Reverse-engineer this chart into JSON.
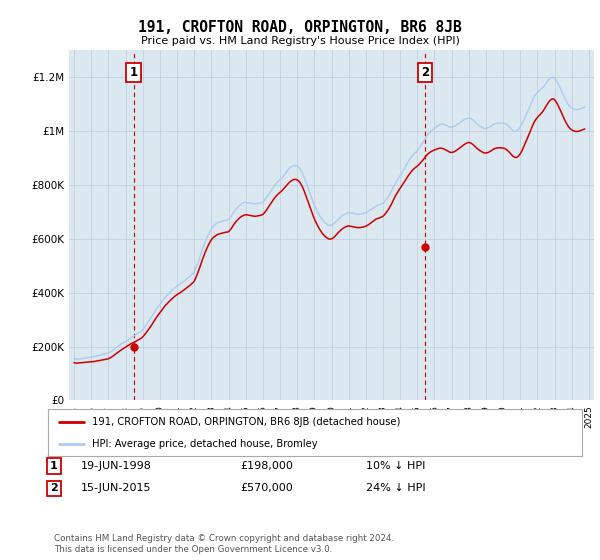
{
  "title": "191, CROFTON ROAD, ORPINGTON, BR6 8JB",
  "subtitle": "Price paid vs. HM Land Registry's House Price Index (HPI)",
  "ylabel_ticks": [
    "£0",
    "£200K",
    "£400K",
    "£600K",
    "£800K",
    "£1M",
    "£1.2M"
  ],
  "ytick_values": [
    0,
    200000,
    400000,
    600000,
    800000,
    1000000,
    1200000
  ],
  "ylim": [
    0,
    1300000
  ],
  "xlim_start": 1994.7,
  "xlim_end": 2025.3,
  "hpi_color": "#aaccee",
  "price_color": "#cc0000",
  "bg_color": "#dce8f0",
  "grid_color": "#bbccdd",
  "sale1_x": 1998.46,
  "sale1_y": 198000,
  "sale1_label": "1",
  "sale2_x": 2015.46,
  "sale2_y": 570000,
  "sale2_label": "2",
  "legend_price_label": "191, CROFTON ROAD, ORPINGTON, BR6 8JB (detached house)",
  "legend_hpi_label": "HPI: Average price, detached house, Bromley",
  "annotation1_date": "19-JUN-1998",
  "annotation1_price": "£198,000",
  "annotation1_hpi": "10% ↓ HPI",
  "annotation2_date": "15-JUN-2015",
  "annotation2_price": "£570,000",
  "annotation2_hpi": "24% ↓ HPI",
  "footer": "Contains HM Land Registry data © Crown copyright and database right 2024.\nThis data is licensed under the Open Government Licence v3.0.",
  "hpi_data_years": [
    1995,
    1995.083,
    1995.167,
    1995.25,
    1995.333,
    1995.417,
    1995.5,
    1995.583,
    1995.667,
    1995.75,
    1995.833,
    1995.917,
    1996,
    1996.083,
    1996.167,
    1996.25,
    1996.333,
    1996.417,
    1996.5,
    1996.583,
    1996.667,
    1996.75,
    1996.833,
    1996.917,
    1997,
    1997.083,
    1997.167,
    1997.25,
    1997.333,
    1997.417,
    1997.5,
    1997.583,
    1997.667,
    1997.75,
    1997.833,
    1997.917,
    1998,
    1998.083,
    1998.167,
    1998.25,
    1998.333,
    1998.417,
    1998.5,
    1998.583,
    1998.667,
    1998.75,
    1998.833,
    1998.917,
    1999,
    1999.083,
    1999.167,
    1999.25,
    1999.333,
    1999.417,
    1999.5,
    1999.583,
    1999.667,
    1999.75,
    1999.833,
    1999.917,
    2000,
    2000.083,
    2000.167,
    2000.25,
    2000.333,
    2000.417,
    2000.5,
    2000.583,
    2000.667,
    2000.75,
    2000.833,
    2000.917,
    2001,
    2001.083,
    2001.167,
    2001.25,
    2001.333,
    2001.417,
    2001.5,
    2001.583,
    2001.667,
    2001.75,
    2001.833,
    2001.917,
    2002,
    2002.083,
    2002.167,
    2002.25,
    2002.333,
    2002.417,
    2002.5,
    2002.583,
    2002.667,
    2002.75,
    2002.833,
    2002.917,
    2003,
    2003.083,
    2003.167,
    2003.25,
    2003.333,
    2003.417,
    2003.5,
    2003.583,
    2003.667,
    2003.75,
    2003.833,
    2003.917,
    2004,
    2004.083,
    2004.167,
    2004.25,
    2004.333,
    2004.417,
    2004.5,
    2004.583,
    2004.667,
    2004.75,
    2004.833,
    2004.917,
    2005,
    2005.083,
    2005.167,
    2005.25,
    2005.333,
    2005.417,
    2005.5,
    2005.583,
    2005.667,
    2005.75,
    2005.833,
    2005.917,
    2006,
    2006.083,
    2006.167,
    2006.25,
    2006.333,
    2006.417,
    2006.5,
    2006.583,
    2006.667,
    2006.75,
    2006.833,
    2006.917,
    2007,
    2007.083,
    2007.167,
    2007.25,
    2007.333,
    2007.417,
    2007.5,
    2007.583,
    2007.667,
    2007.75,
    2007.833,
    2007.917,
    2008,
    2008.083,
    2008.167,
    2008.25,
    2008.333,
    2008.417,
    2008.5,
    2008.583,
    2008.667,
    2008.75,
    2008.833,
    2008.917,
    2009,
    2009.083,
    2009.167,
    2009.25,
    2009.333,
    2009.417,
    2009.5,
    2009.583,
    2009.667,
    2009.75,
    2009.833,
    2009.917,
    2010,
    2010.083,
    2010.167,
    2010.25,
    2010.333,
    2010.417,
    2010.5,
    2010.583,
    2010.667,
    2010.75,
    2010.833,
    2010.917,
    2011,
    2011.083,
    2011.167,
    2011.25,
    2011.333,
    2011.417,
    2011.5,
    2011.583,
    2011.667,
    2011.75,
    2011.833,
    2011.917,
    2012,
    2012.083,
    2012.167,
    2012.25,
    2012.333,
    2012.417,
    2012.5,
    2012.583,
    2012.667,
    2012.75,
    2012.833,
    2012.917,
    2013,
    2013.083,
    2013.167,
    2013.25,
    2013.333,
    2013.417,
    2013.5,
    2013.583,
    2013.667,
    2013.75,
    2013.833,
    2013.917,
    2014,
    2014.083,
    2014.167,
    2014.25,
    2014.333,
    2014.417,
    2014.5,
    2014.583,
    2014.667,
    2014.75,
    2014.833,
    2014.917,
    2015,
    2015.083,
    2015.167,
    2015.25,
    2015.333,
    2015.417,
    2015.5,
    2015.583,
    2015.667,
    2015.75,
    2015.833,
    2015.917,
    2016,
    2016.083,
    2016.167,
    2016.25,
    2016.333,
    2016.417,
    2016.5,
    2016.583,
    2016.667,
    2016.75,
    2016.833,
    2016.917,
    2017,
    2017.083,
    2017.167,
    2017.25,
    2017.333,
    2017.417,
    2017.5,
    2017.583,
    2017.667,
    2017.75,
    2017.833,
    2017.917,
    2018,
    2018.083,
    2018.167,
    2018.25,
    2018.333,
    2018.417,
    2018.5,
    2018.583,
    2018.667,
    2018.75,
    2018.833,
    2018.917,
    2019,
    2019.083,
    2019.167,
    2019.25,
    2019.333,
    2019.417,
    2019.5,
    2019.583,
    2019.667,
    2019.75,
    2019.833,
    2019.917,
    2020,
    2020.083,
    2020.167,
    2020.25,
    2020.333,
    2020.417,
    2020.5,
    2020.583,
    2020.667,
    2020.75,
    2020.833,
    2020.917,
    2021,
    2021.083,
    2021.167,
    2021.25,
    2021.333,
    2021.417,
    2021.5,
    2021.583,
    2021.667,
    2021.75,
    2021.833,
    2021.917,
    2022,
    2022.083,
    2022.167,
    2022.25,
    2022.333,
    2022.417,
    2022.5,
    2022.583,
    2022.667,
    2022.75,
    2022.833,
    2022.917,
    2023,
    2023.083,
    2023.167,
    2023.25,
    2023.333,
    2023.417,
    2023.5,
    2023.583,
    2023.667,
    2023.75,
    2023.833,
    2023.917,
    2024,
    2024.083,
    2024.167,
    2024.25,
    2024.333,
    2024.417,
    2024.5,
    2024.583,
    2024.667,
    2024.75
  ],
  "hpi_values": [
    155000,
    154000,
    153000,
    153500,
    154000,
    155000,
    156000,
    156500,
    157000,
    158000,
    159000,
    160000,
    161000,
    162000,
    163000,
    164000,
    165000,
    166500,
    168000,
    169500,
    171000,
    172000,
    173000,
    174000,
    176000,
    179000,
    182000,
    186000,
    190000,
    194000,
    198000,
    202000,
    206000,
    210000,
    213000,
    216000,
    219000,
    222000,
    226000,
    230000,
    234000,
    237000,
    240000,
    244000,
    248000,
    251000,
    254000,
    257000,
    263000,
    270000,
    277000,
    285000,
    293000,
    301000,
    309000,
    318000,
    327000,
    335000,
    343000,
    350000,
    357000,
    364000,
    371000,
    378000,
    385000,
    390000,
    396000,
    401000,
    407000,
    412000,
    417000,
    421000,
    425000,
    428000,
    432000,
    436000,
    440000,
    444000,
    448000,
    453000,
    457000,
    461000,
    466000,
    471000,
    478000,
    490000,
    503000,
    518000,
    533000,
    549000,
    565000,
    579000,
    593000,
    606000,
    618000,
    628000,
    637000,
    644000,
    650000,
    655000,
    659000,
    661000,
    663000,
    665000,
    666000,
    668000,
    669000,
    670000,
    672000,
    678000,
    685000,
    694000,
    701000,
    708000,
    715000,
    720000,
    725000,
    730000,
    733000,
    735000,
    736000,
    735000,
    734000,
    733000,
    732000,
    731000,
    730000,
    730000,
    731000,
    732000,
    733000,
    734000,
    737000,
    742000,
    749000,
    757000,
    765000,
    773000,
    781000,
    789000,
    797000,
    804000,
    810000,
    815000,
    820000,
    825000,
    831000,
    838000,
    845000,
    852000,
    859000,
    864000,
    868000,
    871000,
    872000,
    872000,
    870000,
    866000,
    860000,
    851000,
    840000,
    827000,
    813000,
    798000,
    783000,
    768000,
    753000,
    739000,
    725000,
    714000,
    703000,
    693000,
    684000,
    676000,
    669000,
    663000,
    658000,
    654000,
    651000,
    650000,
    651000,
    654000,
    658000,
    664000,
    669000,
    674000,
    679000,
    684000,
    688000,
    691000,
    694000,
    696000,
    697000,
    697000,
    696000,
    695000,
    694000,
    693000,
    692000,
    692000,
    692000,
    693000,
    694000,
    696000,
    697000,
    700000,
    703000,
    707000,
    710000,
    714000,
    718000,
    721000,
    724000,
    726000,
    728000,
    730000,
    733000,
    738000,
    744000,
    751000,
    759000,
    768000,
    778000,
    789000,
    799000,
    809000,
    818000,
    827000,
    835000,
    843000,
    852000,
    861000,
    870000,
    880000,
    889000,
    897000,
    905000,
    911000,
    917000,
    922000,
    928000,
    935000,
    943000,
    951000,
    959000,
    967000,
    976000,
    984000,
    991000,
    997000,
    1002000,
    1006000,
    1010000,
    1014000,
    1018000,
    1022000,
    1025000,
    1027000,
    1027000,
    1025000,
    1022000,
    1020000,
    1017000,
    1015000,
    1015000,
    1016000,
    1018000,
    1021000,
    1025000,
    1028000,
    1032000,
    1036000,
    1040000,
    1043000,
    1046000,
    1048000,
    1049000,
    1048000,
    1045000,
    1041000,
    1036000,
    1031000,
    1026000,
    1022000,
    1018000,
    1015000,
    1012000,
    1010000,
    1010000,
    1011000,
    1014000,
    1017000,
    1020000,
    1024000,
    1027000,
    1029000,
    1030000,
    1030000,
    1030000,
    1030000,
    1030000,
    1029000,
    1027000,
    1023000,
    1019000,
    1013000,
    1007000,
    1002000,
    999000,
    999000,
    1002000,
    1007000,
    1015000,
    1025000,
    1036000,
    1048000,
    1059000,
    1070000,
    1082000,
    1095000,
    1108000,
    1120000,
    1130000,
    1138000,
    1144000,
    1149000,
    1153000,
    1158000,
    1163000,
    1170000,
    1178000,
    1185000,
    1191000,
    1196000,
    1199000,
    1200000,
    1197000,
    1191000,
    1182000,
    1171000,
    1160000,
    1148000,
    1136000,
    1124000,
    1113000,
    1104000,
    1096000,
    1090000,
    1086000,
    1083000,
    1081000,
    1080000,
    1080000,
    1081000,
    1083000,
    1085000,
    1087000,
    1089000
  ],
  "price_values": [
    140000,
    139000,
    138500,
    139000,
    139500,
    140000,
    140500,
    141000,
    141500,
    142000,
    142500,
    143000,
    143500,
    144000,
    144500,
    145500,
    146500,
    147500,
    148500,
    149500,
    150500,
    151500,
    152500,
    153500,
    155000,
    157500,
    160500,
    164000,
    168000,
    172000,
    176000,
    180000,
    184000,
    187500,
    191000,
    194500,
    198000,
    201000,
    204500,
    208000,
    211500,
    213500,
    216000,
    219000,
    222000,
    225000,
    228000,
    231000,
    236000,
    242500,
    249000,
    256000,
    263500,
    271000,
    278500,
    287000,
    295500,
    303500,
    311500,
    319000,
    326000,
    333000,
    340000,
    347000,
    354000,
    359000,
    365000,
    370000,
    375500,
    380500,
    385000,
    389000,
    393000,
    396000,
    399500,
    403000,
    407000,
    411000,
    415000,
    419000,
    423500,
    427500,
    432000,
    437000,
    443000,
    454000,
    467000,
    481000,
    496000,
    512000,
    527000,
    541000,
    555000,
    567000,
    578000,
    588000,
    597000,
    603000,
    608000,
    612000,
    615500,
    617500,
    619000,
    620500,
    622000,
    623500,
    624500,
    625500,
    626500,
    632500,
    639000,
    648000,
    656000,
    663000,
    669000,
    674000,
    679000,
    683000,
    686000,
    688000,
    690000,
    689000,
    688000,
    687000,
    686000,
    685000,
    684000,
    684000,
    685000,
    686000,
    687000,
    688000,
    691000,
    696000,
    703000,
    711000,
    719000,
    727000,
    735000,
    743000,
    751000,
    757000,
    763000,
    768000,
    773000,
    777000,
    783000,
    789000,
    795000,
    801000,
    807000,
    812000,
    816000,
    819000,
    821000,
    821000,
    819000,
    815000,
    809000,
    800000,
    789000,
    776000,
    762000,
    747000,
    732000,
    717000,
    702000,
    688000,
    674000,
    663000,
    652000,
    642000,
    633000,
    625000,
    618000,
    612000,
    607000,
    603000,
    600000,
    599000,
    600000,
    603000,
    607000,
    613000,
    619000,
    625000,
    630000,
    635000,
    639000,
    642000,
    645000,
    647000,
    648000,
    647000,
    646000,
    645000,
    644000,
    643000,
    642000,
    642000,
    642000,
    643000,
    644000,
    645000,
    647000,
    650000,
    653000,
    657000,
    661000,
    665000,
    669000,
    673000,
    675000,
    677000,
    679000,
    681000,
    684000,
    689000,
    696000,
    703000,
    711000,
    720000,
    730000,
    741000,
    752000,
    762000,
    771000,
    780000,
    788000,
    796000,
    804000,
    812000,
    820000,
    829000,
    837000,
    844000,
    851000,
    857000,
    862000,
    866000,
    870000,
    875000,
    881000,
    887000,
    893000,
    900000,
    907000,
    913000,
    918000,
    922000,
    925000,
    928000,
    930000,
    932000,
    934000,
    936000,
    937000,
    937000,
    935000,
    933000,
    930000,
    927000,
    924000,
    921000,
    921000,
    922000,
    924000,
    927000,
    931000,
    935000,
    939000,
    943000,
    947000,
    951000,
    954000,
    957000,
    958000,
    957000,
    954000,
    950000,
    945000,
    940000,
    935000,
    931000,
    927000,
    924000,
    921000,
    919000,
    919000,
    920000,
    922000,
    925000,
    928000,
    932000,
    935000,
    937000,
    938000,
    938000,
    938000,
    938000,
    937000,
    936000,
    933000,
    929000,
    924000,
    918000,
    912000,
    907000,
    903000,
    902000,
    904000,
    909000,
    916000,
    925000,
    937000,
    949000,
    961000,
    974000,
    987000,
    1000000,
    1013000,
    1025000,
    1036000,
    1044000,
    1051000,
    1057000,
    1062000,
    1068000,
    1075000,
    1083000,
    1092000,
    1101000,
    1109000,
    1115000,
    1119000,
    1120000,
    1117000,
    1110000,
    1101000,
    1090000,
    1079000,
    1067000,
    1055000,
    1043000,
    1032000,
    1023000,
    1015000,
    1009000,
    1005000,
    1002000,
    1000000,
    999000,
    999000,
    1000000,
    1002000,
    1004000,
    1006000,
    1008000
  ]
}
